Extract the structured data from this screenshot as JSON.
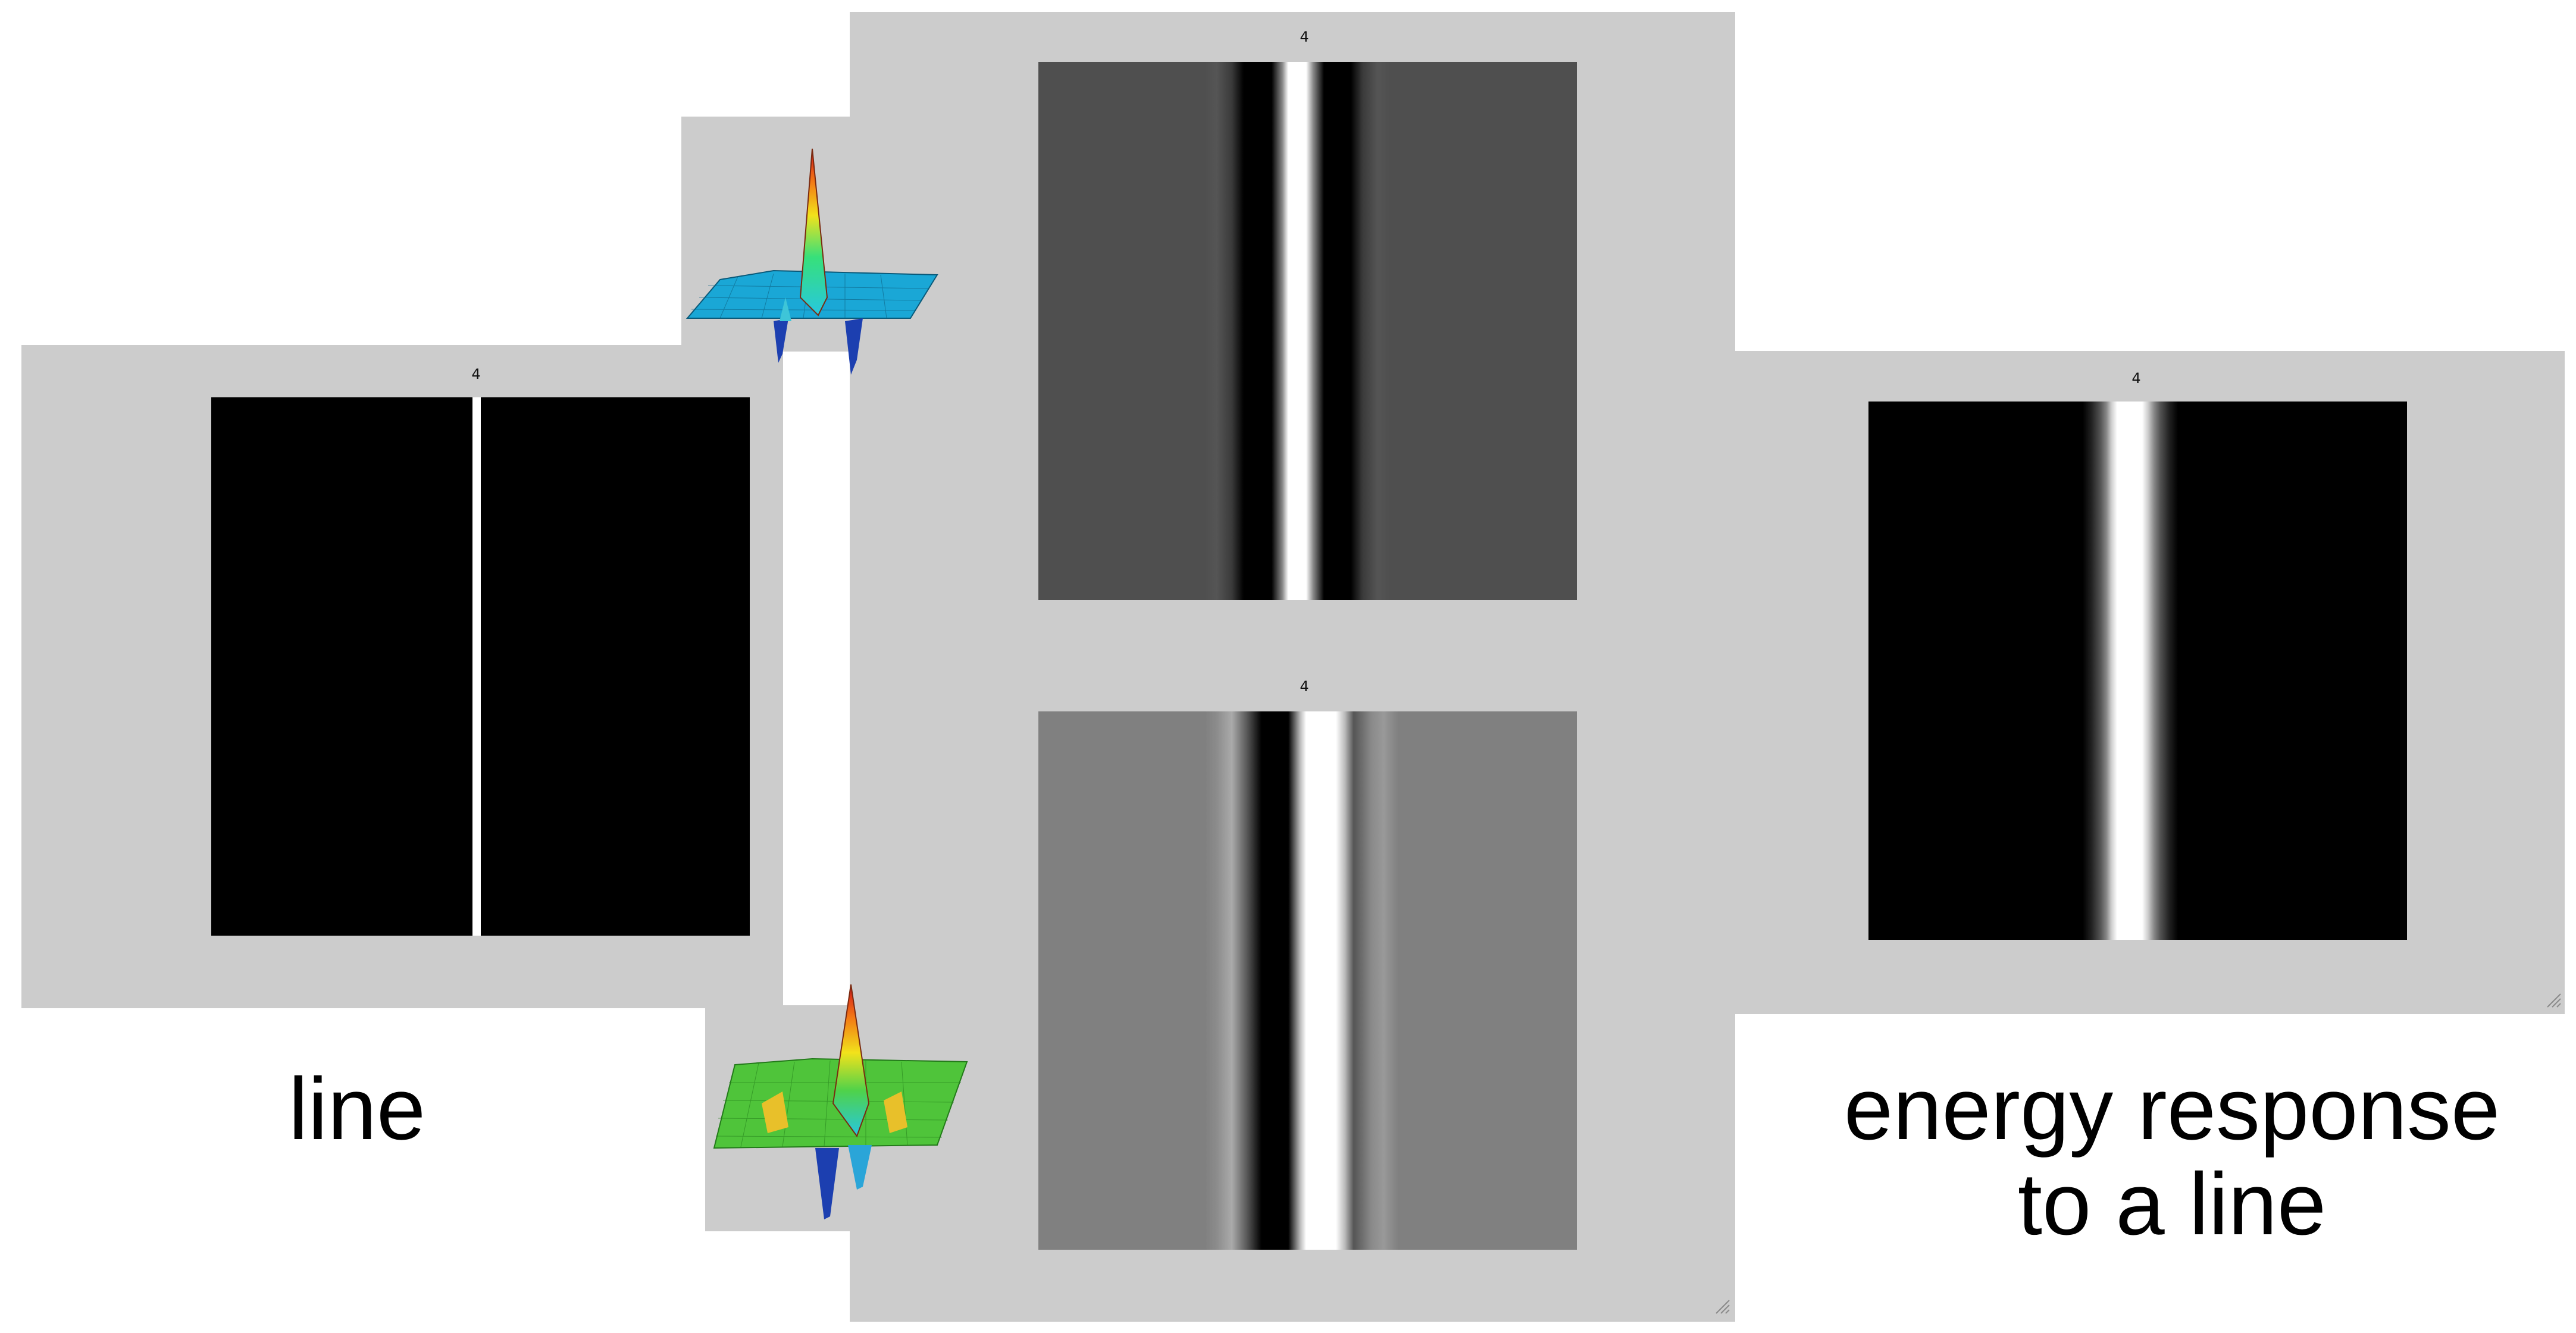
{
  "figures": {
    "line_title": "4",
    "odd_filter_title": "4",
    "even_filter_title": "4",
    "energy_title": "4"
  },
  "captions": {
    "line": "line",
    "energy_line1": "energy response",
    "energy_line2": "to a line"
  },
  "filters": {
    "odd_icon": "odd-phase-gabor-surface-icon",
    "even_icon": "even-phase-gabor-surface-icon"
  },
  "colors": {
    "panel": "#cccccc",
    "background": "#ffffff",
    "odd_filter_gray": "#4f4f4f",
    "even_filter_gray": "#808080",
    "odd_surface_base": "#1aa7d6",
    "even_surface_base": "#4fc43a"
  }
}
